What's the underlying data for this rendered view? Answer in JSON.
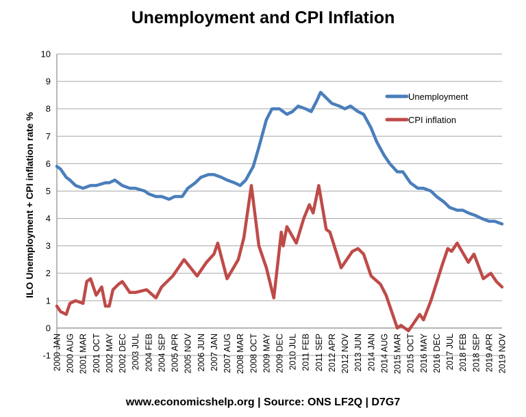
{
  "chart_data": {
    "type": "line",
    "title": "Unemployment and CPI Inflation",
    "ylabel": "ILO Unemployment + CPI inflation rate %",
    "xlabel": "",
    "ylim": [
      -1,
      10
    ],
    "yticks": [
      -1,
      0,
      1,
      2,
      3,
      4,
      5,
      6,
      7,
      8,
      9,
      10
    ],
    "xlim": [
      "2000-01",
      "2019-11"
    ],
    "xtick_labels": [
      "2000 JAN",
      "2000 AUG",
      "2001 MAR",
      "2001 OCT",
      "2002 MAY",
      "2002 DEC",
      "2003 JUL",
      "2004 FEB",
      "2004 SEP",
      "2005 APR",
      "2005 NOV",
      "2006 JUN",
      "2007 JAN",
      "2007 AUG",
      "2008 MAR",
      "2008 OCT",
      "2009 MAY",
      "2009 DEC",
      "2010 JUL",
      "2011 FEB",
      "2011 SEP",
      "2012 APR",
      "2012 NOV",
      "2013 JUN",
      "2014 JAN",
      "2014 AUG",
      "2015 MAR",
      "2015 OCT",
      "2016 MAY",
      "2016 DEC",
      "2017 JUL",
      "2018 FEB",
      "2018 SEP",
      "2019 APR",
      "2019 NOV"
    ],
    "grid": true,
    "legend_position": "top-right",
    "series": [
      {
        "name": "Unemployment",
        "color": "#4a7ebb",
        "x": [
          "2000-01",
          "2000-03",
          "2000-06",
          "2000-08",
          "2000-11",
          "2001-03",
          "2001-07",
          "2001-10",
          "2002-03",
          "2002-05",
          "2002-08",
          "2002-12",
          "2003-04",
          "2003-07",
          "2003-12",
          "2004-02",
          "2004-06",
          "2004-09",
          "2005-01",
          "2005-04",
          "2005-08",
          "2005-11",
          "2006-03",
          "2006-06",
          "2006-10",
          "2007-01",
          "2007-05",
          "2007-08",
          "2007-12",
          "2008-03",
          "2008-06",
          "2008-10",
          "2009-01",
          "2009-05",
          "2009-08",
          "2009-12",
          "2010-04",
          "2010-07",
          "2010-10",
          "2011-02",
          "2011-05",
          "2011-08",
          "2011-10",
          "2012-01",
          "2012-04",
          "2012-08",
          "2012-11",
          "2013-02",
          "2013-06",
          "2013-09",
          "2014-01",
          "2014-04",
          "2014-08",
          "2014-11",
          "2015-03",
          "2015-06",
          "2015-10",
          "2016-02",
          "2016-05",
          "2016-09",
          "2016-12",
          "2017-04",
          "2017-07",
          "2017-11",
          "2018-02",
          "2018-05",
          "2018-09",
          "2018-12",
          "2019-04",
          "2019-07",
          "2019-11"
        ],
        "values": [
          5.9,
          5.8,
          5.5,
          5.4,
          5.2,
          5.1,
          5.2,
          5.2,
          5.3,
          5.3,
          5.4,
          5.2,
          5.1,
          5.1,
          5.0,
          4.9,
          4.8,
          4.8,
          4.7,
          4.8,
          4.8,
          5.1,
          5.3,
          5.5,
          5.6,
          5.6,
          5.5,
          5.4,
          5.3,
          5.2,
          5.4,
          5.9,
          6.6,
          7.6,
          8.0,
          8.0,
          7.8,
          7.9,
          8.1,
          8.0,
          7.9,
          8.3,
          8.6,
          8.4,
          8.2,
          8.1,
          8.0,
          8.1,
          7.9,
          7.8,
          7.3,
          6.8,
          6.3,
          6.0,
          5.7,
          5.7,
          5.3,
          5.1,
          5.1,
          5.0,
          4.8,
          4.6,
          4.4,
          4.3,
          4.3,
          4.2,
          4.1,
          4.0,
          3.9,
          3.9,
          3.8
        ]
      },
      {
        "name": "CPI inflation",
        "color": "#be4b48",
        "x": [
          "2000-01",
          "2000-03",
          "2000-06",
          "2000-08",
          "2000-11",
          "2001-03",
          "2001-05",
          "2001-07",
          "2001-10",
          "2002-01",
          "2002-03",
          "2002-05",
          "2002-07",
          "2002-10",
          "2002-12",
          "2003-04",
          "2003-07",
          "2004-01",
          "2004-06",
          "2004-09",
          "2005-03",
          "2005-09",
          "2006-04",
          "2006-09",
          "2007-01",
          "2007-03",
          "2007-08",
          "2008-02",
          "2008-05",
          "2008-09",
          "2009-01",
          "2009-05",
          "2009-09",
          "2010-01",
          "2010-02",
          "2010-04",
          "2010-09",
          "2011-01",
          "2011-04",
          "2011-06",
          "2011-09",
          "2012-01",
          "2012-03",
          "2012-09",
          "2013-03",
          "2013-06",
          "2013-09",
          "2014-01",
          "2014-06",
          "2014-09",
          "2015-03",
          "2015-05",
          "2015-09",
          "2016-03",
          "2016-05",
          "2016-09",
          "2017-03",
          "2017-06",
          "2017-08",
          "2017-11",
          "2018-05",
          "2018-08",
          "2019-01",
          "2019-05",
          "2019-08",
          "2019-11"
        ],
        "values": [
          0.8,
          0.6,
          0.5,
          0.9,
          1.0,
          0.9,
          1.7,
          1.8,
          1.2,
          1.5,
          0.8,
          0.8,
          1.4,
          1.6,
          1.7,
          1.3,
          1.3,
          1.4,
          1.1,
          1.5,
          1.9,
          2.5,
          1.9,
          2.4,
          2.7,
          3.1,
          1.8,
          2.5,
          3.3,
          5.2,
          3.0,
          2.2,
          1.1,
          3.5,
          3.0,
          3.7,
          3.1,
          4.0,
          4.5,
          4.2,
          5.2,
          3.6,
          3.5,
          2.2,
          2.8,
          2.9,
          2.7,
          1.9,
          1.6,
          1.2,
          0.0,
          0.1,
          -0.1,
          0.5,
          0.3,
          1.0,
          2.3,
          2.9,
          2.8,
          3.1,
          2.4,
          2.7,
          1.8,
          2.0,
          1.7,
          1.5
        ]
      }
    ]
  },
  "footer": "www.economicshelp.org | Source: ONS LF2Q | D7G7"
}
